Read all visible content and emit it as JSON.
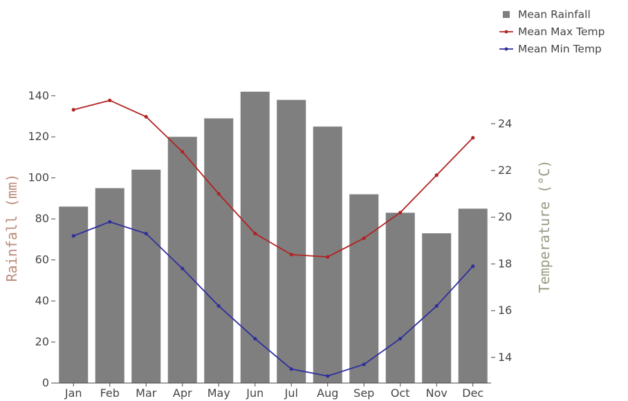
{
  "chart_data": {
    "type": "bar",
    "categories": [
      "Jan",
      "Feb",
      "Mar",
      "Apr",
      "May",
      "Jun",
      "Jul",
      "Aug",
      "Sep",
      "Oct",
      "Nov",
      "Dec"
    ],
    "series": [
      {
        "name": "Mean Rainfall",
        "kind": "bar",
        "axis": "left",
        "color": "#7f7f7f",
        "values": [
          86,
          95,
          104,
          120,
          129,
          142,
          138,
          125,
          92,
          83,
          73,
          85
        ]
      },
      {
        "name": "Mean Max Temp",
        "kind": "line",
        "axis": "right",
        "color": "#b22222",
        "values": [
          24.6,
          25.0,
          24.3,
          22.8,
          21.0,
          19.3,
          18.4,
          18.3,
          19.1,
          20.2,
          21.8,
          23.4
        ]
      },
      {
        "name": "Mean Min Temp",
        "kind": "line",
        "axis": "right",
        "color": "#2e2e9e",
        "values": [
          19.2,
          19.8,
          19.3,
          17.8,
          16.2,
          14.8,
          13.5,
          13.2,
          13.7,
          14.8,
          16.2,
          17.9
        ]
      }
    ],
    "ylabel": "Rainfall (mm)",
    "y2label": "Temperature (°C)",
    "ylim": [
      0,
      148
    ],
    "yticks": [
      0,
      20,
      40,
      60,
      80,
      100,
      120,
      140
    ],
    "y2lim": [
      12.9,
      25.9
    ],
    "y2ticks": [
      14,
      16,
      18,
      20,
      22,
      24
    ],
    "legend": "top-right",
    "grid": false
  }
}
